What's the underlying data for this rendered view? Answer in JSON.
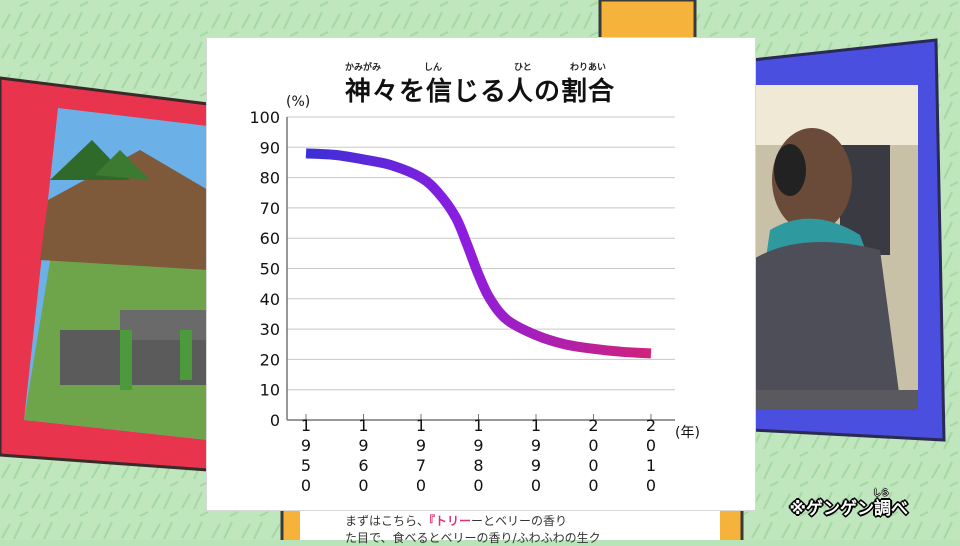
{
  "chart_data": {
    "type": "line",
    "title": "神々を信じる人の割合",
    "title_ruby": [
      "かみがみ",
      "しん",
      "ひと",
      "わりあい"
    ],
    "ylabel_unit": "(%)",
    "xlabel_unit": "(年)",
    "ylim": [
      0,
      100
    ],
    "yticks": [
      0,
      10,
      20,
      30,
      40,
      50,
      60,
      70,
      80,
      90,
      100
    ],
    "xticks": [
      "1950",
      "1960",
      "1970",
      "1980",
      "1990",
      "2000",
      "2010"
    ],
    "x": [
      1950,
      1955,
      1960,
      1965,
      1970,
      1973,
      1976,
      1978,
      1980,
      1982,
      1985,
      1990,
      1995,
      2000,
      2005,
      2010
    ],
    "y": [
      88,
      87.5,
      86,
      84,
      80,
      75,
      67,
      58,
      48,
      40,
      33,
      28,
      25,
      23.5,
      22.5,
      22
    ],
    "line_gradient": [
      "#3a2fd6",
      "#8c1de0",
      "#d0237a"
    ],
    "grid": true
  },
  "credit": {
    "text": "※ゲンゲン調べ",
    "ruby": "しら"
  },
  "background_note": {
    "line1_prefix": "まずはこちら、",
    "line1_emph": "『トリー",
    "line1_rest": "ーとベリーの香り",
    "line2": "た目で、食べるとベリーの香り/ふわふわの生ク"
  }
}
